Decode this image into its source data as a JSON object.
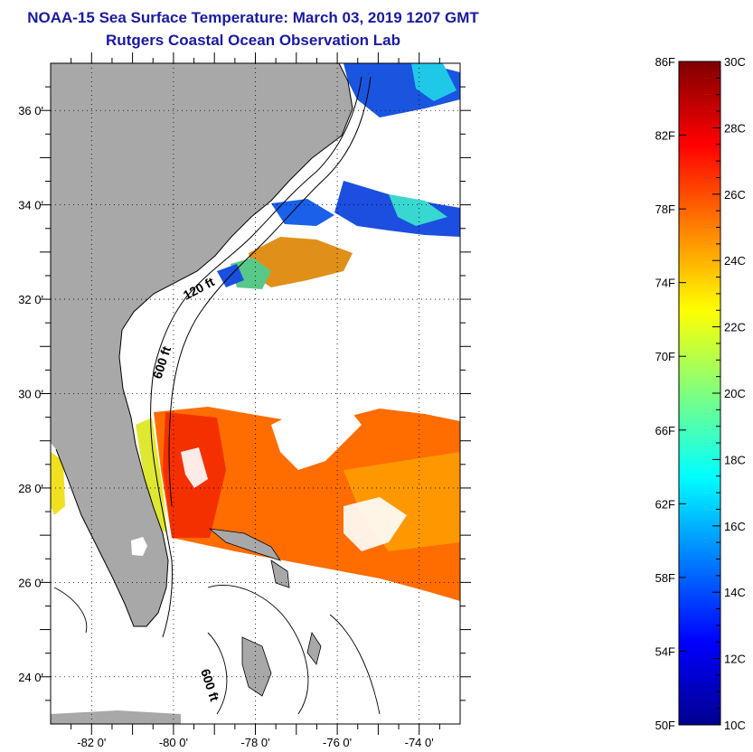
{
  "header": {
    "title": "NOAA-15 Sea Surface Temperature:  March 03, 2019 1207 GMT",
    "subtitle": "Rutgers Coastal Ocean Observation Lab"
  },
  "map": {
    "lat_labels": [
      "36 0'",
      "34 0'",
      "32 0'",
      "30 0'",
      "28 0'",
      "26 0'",
      "24 0'"
    ],
    "lon_labels": [
      "-82 0'",
      "-80 0'",
      "-78 0'",
      "-76 0'",
      "-74 0'"
    ],
    "lat_values": [
      36,
      34,
      32,
      30,
      28,
      26,
      24
    ],
    "lon_values": [
      -82,
      -80,
      -78,
      -76,
      -74
    ],
    "lon_range": [
      -83.0,
      -73.0
    ],
    "lat_range": [
      23.0,
      37.0
    ],
    "contour_labels": [
      "120 ft",
      "600 ft",
      "600 ft"
    ]
  },
  "legend": {
    "f_labels": [
      "86F",
      "82F",
      "78F",
      "74F",
      "70F",
      "66F",
      "62F",
      "58F",
      "54F",
      "50F"
    ],
    "c_labels": [
      "30C",
      "28C",
      "26C",
      "24C",
      "22C",
      "20C",
      "18C",
      "16C",
      "14C",
      "12C",
      "10C"
    ],
    "c_range": [
      10,
      30
    ],
    "colors": [
      "#00008f",
      "#0000ff",
      "#007fff",
      "#00ffff",
      "#7fff7f",
      "#ffff00",
      "#ff7f00",
      "#ff0000",
      "#7f0000"
    ]
  }
}
